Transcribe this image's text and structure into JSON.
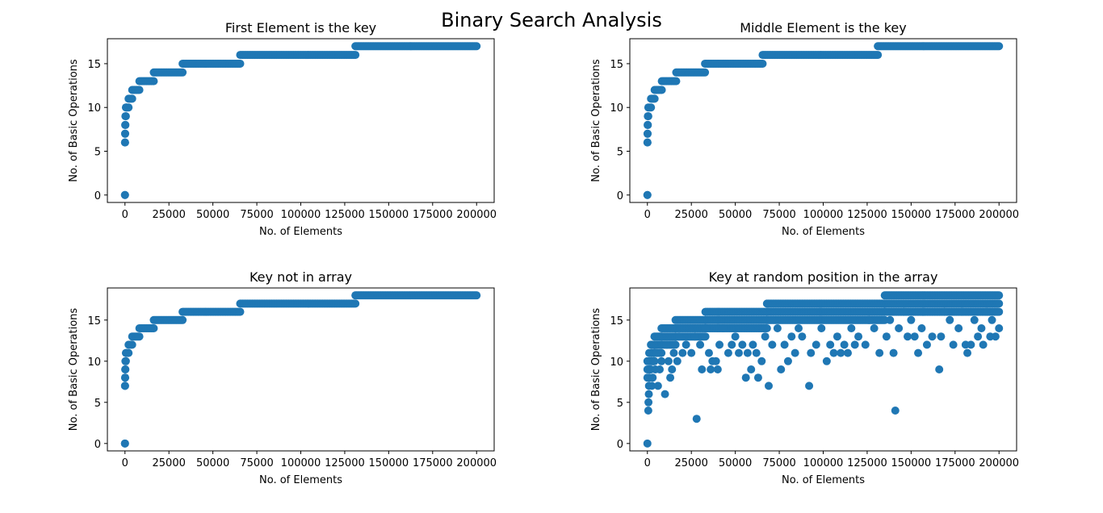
{
  "suptitle": "Binary Search Analysis",
  "marker_color": "#1f77b4",
  "chart_data": [
    {
      "type": "scatter",
      "title": "First Element is the key",
      "xlabel": "No. of Elements",
      "ylabel": "No. of Basic Operations",
      "xlim": [
        -10000,
        210000
      ],
      "ylim": [
        -0.85,
        17.85
      ],
      "xticks": [
        0,
        25000,
        50000,
        75000,
        100000,
        125000,
        150000,
        175000,
        200000
      ],
      "yticks": [
        0,
        5,
        10,
        15
      ],
      "steps": [
        {
          "x_start": 1,
          "x_end": 1,
          "y": 0
        },
        {
          "x_start": 2,
          "x_end": 63,
          "y": 6
        },
        {
          "x_start": 64,
          "x_end": 127,
          "y": 7
        },
        {
          "x_start": 128,
          "x_end": 255,
          "y": 8
        },
        {
          "x_start": 256,
          "x_end": 511,
          "y": 9
        },
        {
          "x_start": 512,
          "x_end": 1023,
          "y": 10
        },
        {
          "x_start": 1024,
          "x_end": 2047,
          "y": 10
        },
        {
          "x_start": 2048,
          "x_end": 4095,
          "y": 11
        },
        {
          "x_start": 4096,
          "x_end": 8191,
          "y": 12
        },
        {
          "x_start": 8192,
          "x_end": 16383,
          "y": 13
        },
        {
          "x_start": 16384,
          "x_end": 32767,
          "y": 14
        },
        {
          "x_start": 32768,
          "x_end": 65535,
          "y": 15
        },
        {
          "x_start": 65536,
          "x_end": 131071,
          "y": 16
        },
        {
          "x_start": 131072,
          "x_end": 200000,
          "y": 17
        }
      ]
    },
    {
      "type": "scatter",
      "title": "Middle Element is the key",
      "xlabel": "No. of Elements",
      "ylabel": "No. of Basic Operations",
      "xlim": [
        -10000,
        210000
      ],
      "ylim": [
        -0.85,
        17.85
      ],
      "xticks": [
        0,
        25000,
        50000,
        75000,
        100000,
        125000,
        150000,
        175000,
        200000
      ],
      "yticks": [
        0,
        5,
        10,
        15
      ],
      "steps": [
        {
          "x_start": 1,
          "x_end": 1,
          "y": 0
        },
        {
          "x_start": 2,
          "x_end": 63,
          "y": 6
        },
        {
          "x_start": 64,
          "x_end": 127,
          "y": 7
        },
        {
          "x_start": 128,
          "x_end": 255,
          "y": 8
        },
        {
          "x_start": 256,
          "x_end": 511,
          "y": 9
        },
        {
          "x_start": 512,
          "x_end": 2047,
          "y": 10
        },
        {
          "x_start": 2048,
          "x_end": 4095,
          "y": 11
        },
        {
          "x_start": 4096,
          "x_end": 8191,
          "y": 12
        },
        {
          "x_start": 8192,
          "x_end": 16383,
          "y": 13
        },
        {
          "x_start": 16384,
          "x_end": 32767,
          "y": 14
        },
        {
          "x_start": 32768,
          "x_end": 65535,
          "y": 15
        },
        {
          "x_start": 65536,
          "x_end": 131071,
          "y": 16
        },
        {
          "x_start": 131072,
          "x_end": 200000,
          "y": 17
        }
      ]
    },
    {
      "type": "scatter",
      "title": "Key not in array",
      "xlabel": "No. of Elements",
      "ylabel": "No. of Basic Operations",
      "xlim": [
        -10000,
        210000
      ],
      "ylim": [
        -0.9,
        18.9
      ],
      "xticks": [
        0,
        25000,
        50000,
        75000,
        100000,
        125000,
        150000,
        175000,
        200000
      ],
      "yticks": [
        0,
        5,
        10,
        15
      ],
      "steps": [
        {
          "x_start": 1,
          "x_end": 1,
          "y": 0
        },
        {
          "x_start": 2,
          "x_end": 63,
          "y": 7
        },
        {
          "x_start": 64,
          "x_end": 127,
          "y": 8
        },
        {
          "x_start": 128,
          "x_end": 255,
          "y": 9
        },
        {
          "x_start": 256,
          "x_end": 511,
          "y": 10
        },
        {
          "x_start": 512,
          "x_end": 1023,
          "y": 11
        },
        {
          "x_start": 1024,
          "x_end": 2047,
          "y": 11
        },
        {
          "x_start": 2048,
          "x_end": 4095,
          "y": 12
        },
        {
          "x_start": 4096,
          "x_end": 8191,
          "y": 13
        },
        {
          "x_start": 8192,
          "x_end": 16383,
          "y": 14
        },
        {
          "x_start": 16384,
          "x_end": 32767,
          "y": 15
        },
        {
          "x_start": 32768,
          "x_end": 65535,
          "y": 16
        },
        {
          "x_start": 65536,
          "x_end": 131071,
          "y": 17
        },
        {
          "x_start": 131072,
          "x_end": 200000,
          "y": 18
        }
      ]
    },
    {
      "type": "scatter",
      "title": "Key at random position in the array",
      "xlabel": "No. of Elements",
      "ylabel": "No. of Basic Operations",
      "xlim": [
        -10000,
        210000
      ],
      "ylim": [
        -0.9,
        18.9
      ],
      "xticks": [
        0,
        25000,
        50000,
        75000,
        100000,
        125000,
        150000,
        175000,
        200000
      ],
      "yticks": [
        0,
        5,
        10,
        15
      ],
      "band_upper": [
        {
          "x_start": 1,
          "x_end": 1000,
          "y": 10
        },
        {
          "x_start": 1000,
          "x_end": 2000,
          "y": 11
        },
        {
          "x_start": 2000,
          "x_end": 4000,
          "y": 12
        },
        {
          "x_start": 4000,
          "x_end": 8000,
          "y": 13
        },
        {
          "x_start": 8000,
          "x_end": 16000,
          "y": 14
        },
        {
          "x_start": 16000,
          "x_end": 33000,
          "y": 15
        },
        {
          "x_start": 33000,
          "x_end": 68000,
          "y": 16
        },
        {
          "x_start": 68000,
          "x_end": 135000,
          "y": 17
        },
        {
          "x_start": 135000,
          "x_end": 200000,
          "y": 18
        }
      ],
      "points": [
        {
          "x": 0,
          "y": 0
        },
        {
          "x": 500,
          "y": 4
        },
        {
          "x": 600,
          "y": 5
        },
        {
          "x": 800,
          "y": 6
        },
        {
          "x": 900,
          "y": 7
        },
        {
          "x": 1000,
          "y": 8
        },
        {
          "x": 1500,
          "y": 9
        },
        {
          "x": 2500,
          "y": 7
        },
        {
          "x": 3000,
          "y": 8
        },
        {
          "x": 3500,
          "y": 10
        },
        {
          "x": 4500,
          "y": 9
        },
        {
          "x": 5000,
          "y": 11
        },
        {
          "x": 6000,
          "y": 7
        },
        {
          "x": 7000,
          "y": 9
        },
        {
          "x": 8000,
          "y": 10
        },
        {
          "x": 10000,
          "y": 6
        },
        {
          "x": 11000,
          "y": 12
        },
        {
          "x": 12000,
          "y": 10
        },
        {
          "x": 13000,
          "y": 8
        },
        {
          "x": 14000,
          "y": 9
        },
        {
          "x": 15000,
          "y": 11
        },
        {
          "x": 17000,
          "y": 10
        },
        {
          "x": 18000,
          "y": 13
        },
        {
          "x": 20000,
          "y": 11
        },
        {
          "x": 22000,
          "y": 12
        },
        {
          "x": 25000,
          "y": 11
        },
        {
          "x": 27000,
          "y": 13
        },
        {
          "x": 28000,
          "y": 3
        },
        {
          "x": 30000,
          "y": 12
        },
        {
          "x": 31000,
          "y": 9
        },
        {
          "x": 33000,
          "y": 14
        },
        {
          "x": 35000,
          "y": 11
        },
        {
          "x": 36000,
          "y": 9
        },
        {
          "x": 37000,
          "y": 10
        },
        {
          "x": 39000,
          "y": 10
        },
        {
          "x": 40000,
          "y": 9
        },
        {
          "x": 41000,
          "y": 12
        },
        {
          "x": 43000,
          "y": 14
        },
        {
          "x": 46000,
          "y": 11
        },
        {
          "x": 48000,
          "y": 12
        },
        {
          "x": 50000,
          "y": 13
        },
        {
          "x": 52000,
          "y": 11
        },
        {
          "x": 54000,
          "y": 12
        },
        {
          "x": 56000,
          "y": 8
        },
        {
          "x": 57000,
          "y": 11
        },
        {
          "x": 59000,
          "y": 9
        },
        {
          "x": 60000,
          "y": 12
        },
        {
          "x": 62000,
          "y": 11
        },
        {
          "x": 63000,
          "y": 8
        },
        {
          "x": 65000,
          "y": 10
        },
        {
          "x": 67000,
          "y": 13
        },
        {
          "x": 69000,
          "y": 7
        },
        {
          "x": 71000,
          "y": 12
        },
        {
          "x": 74000,
          "y": 14
        },
        {
          "x": 76000,
          "y": 9
        },
        {
          "x": 78000,
          "y": 12
        },
        {
          "x": 80000,
          "y": 10
        },
        {
          "x": 82000,
          "y": 13
        },
        {
          "x": 84000,
          "y": 11
        },
        {
          "x": 86000,
          "y": 14
        },
        {
          "x": 88000,
          "y": 13
        },
        {
          "x": 92000,
          "y": 7
        },
        {
          "x": 93000,
          "y": 11
        },
        {
          "x": 96000,
          "y": 12
        },
        {
          "x": 99000,
          "y": 14
        },
        {
          "x": 102000,
          "y": 10
        },
        {
          "x": 104000,
          "y": 12
        },
        {
          "x": 106000,
          "y": 11
        },
        {
          "x": 108000,
          "y": 13
        },
        {
          "x": 110000,
          "y": 11
        },
        {
          "x": 112000,
          "y": 12
        },
        {
          "x": 114000,
          "y": 11
        },
        {
          "x": 116000,
          "y": 14
        },
        {
          "x": 118000,
          "y": 12
        },
        {
          "x": 120000,
          "y": 13
        },
        {
          "x": 124000,
          "y": 12
        },
        {
          "x": 126000,
          "y": 15
        },
        {
          "x": 129000,
          "y": 14
        },
        {
          "x": 132000,
          "y": 11
        },
        {
          "x": 136000,
          "y": 13
        },
        {
          "x": 138000,
          "y": 15
        },
        {
          "x": 140000,
          "y": 11
        },
        {
          "x": 141000,
          "y": 4
        },
        {
          "x": 143000,
          "y": 14
        },
        {
          "x": 146000,
          "y": 16
        },
        {
          "x": 148000,
          "y": 13
        },
        {
          "x": 150000,
          "y": 15
        },
        {
          "x": 152000,
          "y": 13
        },
        {
          "x": 154000,
          "y": 11
        },
        {
          "x": 156000,
          "y": 14
        },
        {
          "x": 159000,
          "y": 12
        },
        {
          "x": 162000,
          "y": 13
        },
        {
          "x": 166000,
          "y": 9
        },
        {
          "x": 167000,
          "y": 13
        },
        {
          "x": 169000,
          "y": 16
        },
        {
          "x": 172000,
          "y": 15
        },
        {
          "x": 174000,
          "y": 12
        },
        {
          "x": 177000,
          "y": 14
        },
        {
          "x": 179000,
          "y": 16
        },
        {
          "x": 181000,
          "y": 12
        },
        {
          "x": 182000,
          "y": 11
        },
        {
          "x": 184000,
          "y": 12
        },
        {
          "x": 186000,
          "y": 15
        },
        {
          "x": 188000,
          "y": 13
        },
        {
          "x": 190000,
          "y": 14
        },
        {
          "x": 191000,
          "y": 12
        },
        {
          "x": 193000,
          "y": 16
        },
        {
          "x": 195000,
          "y": 13
        },
        {
          "x": 196000,
          "y": 15
        },
        {
          "x": 198000,
          "y": 13
        },
        {
          "x": 200000,
          "y": 14
        }
      ]
    }
  ]
}
